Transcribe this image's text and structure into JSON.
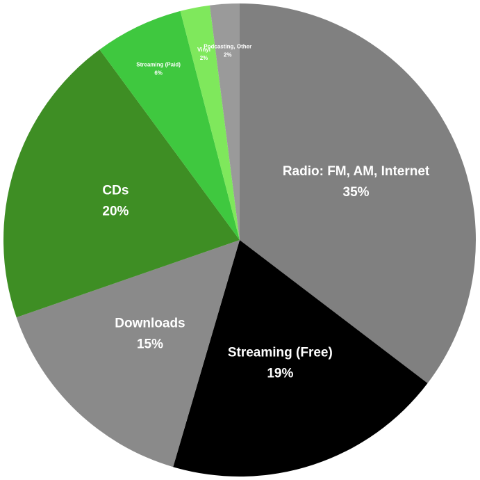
{
  "chart_data": {
    "type": "pie",
    "categories": [
      "Radio: FM, AM, Internet",
      "Streaming (Free)",
      "Downloads",
      "CDs",
      "Streaming (Paid)",
      "Vinyl",
      "Podcasting, Other"
    ],
    "values": [
      35,
      19,
      15,
      20,
      6,
      2,
      2
    ],
    "value_labels": [
      "35%",
      "19%",
      "15%",
      "20%",
      "6%",
      "2%",
      "2%"
    ],
    "colors": [
      "#808080",
      "#000000",
      "#8a8a8a",
      "#3e8e24",
      "#3fc83f",
      "#7fe85c",
      "#9a9a9a"
    ]
  }
}
